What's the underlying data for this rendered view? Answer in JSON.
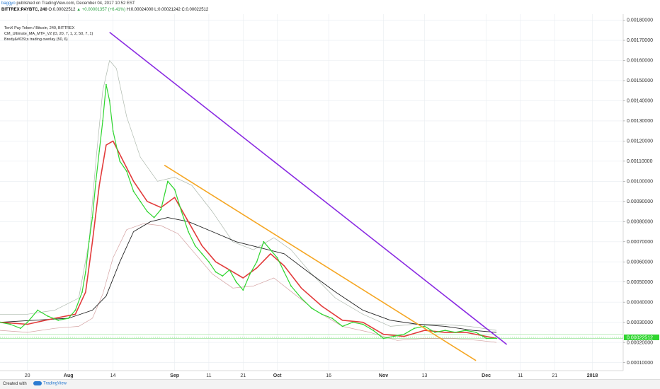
{
  "header": {
    "author": "baggyo",
    "published_text": "published on TradingView.com, December 04, 2017 10:52 EST",
    "symbol": "BITTREX:PAYBTC, 240",
    "open": "0.00022512",
    "change": "+0.00001357 (+6.41%)",
    "high_label": "H:",
    "high": "0.00024000",
    "low_label": "L:",
    "low": "0.00021242",
    "close_label": "C:",
    "close": "0.00022512"
  },
  "legend": {
    "line1": "TenX Pay Token / Bitcoin, 240, BITTREX",
    "line2": "CM_Ultimate_MA_MTF_V2 (D, 20, 7, 1, 2, 50, 7, 1)",
    "line3": "Bredy&#039;s trading overlay (50, 6)"
  },
  "footer": {
    "created_with": "Created with",
    "brand": "TradingView"
  },
  "chart_data": {
    "type": "line",
    "title": "TenX Pay Token / Bitcoin, 240, BITTREX",
    "y_ticks": [
      "0.00180000",
      "0.00170000",
      "0.00160000",
      "0.00150000",
      "0.00140000",
      "0.00130000",
      "0.00120000",
      "0.00110000",
      "0.00100000",
      "0.00090000",
      "0.00080000",
      "0.00070000",
      "0.00060000",
      "0.00050000",
      "0.00040000",
      "0.00030000",
      "0.00020000",
      "0.00010000"
    ],
    "x_ticks": [
      "20",
      "Aug",
      "14",
      "Sep",
      "11",
      "21",
      "Oct",
      "16",
      "Nov",
      "13",
      "Dec",
      "11",
      "21",
      "2018"
    ],
    "x_tick_dates": [
      "2017-07-20",
      "2017-08-01",
      "2017-08-14",
      "2017-09-01",
      "2017-09-11",
      "2017-09-21",
      "2017-10-01",
      "2017-10-16",
      "2017-11-01",
      "2017-11-13",
      "2017-12-01",
      "2017-12-11",
      "2017-12-21",
      "2018-01-01"
    ],
    "x_range": [
      "2017-07-12",
      "2018-01-10"
    ],
    "y_range": [
      6e-05,
      0.00183
    ],
    "grid": true,
    "series": [
      {
        "kind": "price",
        "color": "#2fd52f",
        "points": [
          [
            "2017-07-12",
            0.0003
          ],
          [
            "2017-07-15",
            0.00029
          ],
          [
            "2017-07-18",
            0.00027
          ],
          [
            "2017-07-20",
            0.0003
          ],
          [
            "2017-07-23",
            0.00036
          ],
          [
            "2017-07-26",
            0.00033
          ],
          [
            "2017-07-29",
            0.00031
          ],
          [
            "2017-08-01",
            0.00032
          ],
          [
            "2017-08-03",
            0.00036
          ],
          [
            "2017-08-05",
            0.00045
          ],
          [
            "2017-08-06",
            0.00055
          ],
          [
            "2017-08-07",
            0.0007
          ],
          [
            "2017-08-08",
            0.00082
          ],
          [
            "2017-08-09",
            0.001
          ],
          [
            "2017-08-10",
            0.00115
          ],
          [
            "2017-08-11",
            0.0013
          ],
          [
            "2017-08-12",
            0.00148
          ],
          [
            "2017-08-13",
            0.0014
          ],
          [
            "2017-08-14",
            0.00125
          ],
          [
            "2017-08-16",
            0.0011
          ],
          [
            "2017-08-18",
            0.00105
          ],
          [
            "2017-08-20",
            0.00095
          ],
          [
            "2017-08-22",
            0.0009
          ],
          [
            "2017-08-24",
            0.00085
          ],
          [
            "2017-08-26",
            0.00082
          ],
          [
            "2017-08-28",
            0.00086
          ],
          [
            "2017-08-30",
            0.001
          ],
          [
            "2017-09-01",
            0.00096
          ],
          [
            "2017-09-03",
            0.00085
          ],
          [
            "2017-09-05",
            0.00075
          ],
          [
            "2017-09-07",
            0.00068
          ],
          [
            "2017-09-09",
            0.00064
          ],
          [
            "2017-09-11",
            0.0006
          ],
          [
            "2017-09-13",
            0.00055
          ],
          [
            "2017-09-15",
            0.00053
          ],
          [
            "2017-09-17",
            0.00056
          ],
          [
            "2017-09-19",
            0.0005
          ],
          [
            "2017-09-21",
            0.00046
          ],
          [
            "2017-09-23",
            0.00054
          ],
          [
            "2017-09-25",
            0.0006
          ],
          [
            "2017-09-27",
            0.0007
          ],
          [
            "2017-09-29",
            0.00066
          ],
          [
            "2017-10-01",
            0.00062
          ],
          [
            "2017-10-03",
            0.00055
          ],
          [
            "2017-10-05",
            0.00048
          ],
          [
            "2017-10-08",
            0.00042
          ],
          [
            "2017-10-11",
            0.00037
          ],
          [
            "2017-10-14",
            0.00034
          ],
          [
            "2017-10-17",
            0.00032
          ],
          [
            "2017-10-20",
            0.00028
          ],
          [
            "2017-10-23",
            0.0003
          ],
          [
            "2017-10-26",
            0.00029
          ],
          [
            "2017-10-29",
            0.00026
          ],
          [
            "2017-11-01",
            0.00022
          ],
          [
            "2017-11-04",
            0.00023
          ],
          [
            "2017-11-07",
            0.00024
          ],
          [
            "2017-11-10",
            0.00027
          ],
          [
            "2017-11-13",
            0.00028
          ],
          [
            "2017-11-16",
            0.00025
          ],
          [
            "2017-11-19",
            0.00026
          ],
          [
            "2017-11-22",
            0.00025
          ],
          [
            "2017-11-25",
            0.00026
          ],
          [
            "2017-11-28",
            0.00025
          ],
          [
            "2017-12-01",
            0.00022
          ],
          [
            "2017-12-04",
            0.00022
          ]
        ]
      },
      {
        "kind": "ma_fast",
        "color": "#e23b3b",
        "points": [
          [
            "2017-07-12",
            0.0003
          ],
          [
            "2017-07-20",
            0.00029
          ],
          [
            "2017-07-28",
            0.00032
          ],
          [
            "2017-08-03",
            0.00034
          ],
          [
            "2017-08-06",
            0.00045
          ],
          [
            "2017-08-08",
            0.0007
          ],
          [
            "2017-08-10",
            0.00098
          ],
          [
            "2017-08-12",
            0.00118
          ],
          [
            "2017-08-14",
            0.0012
          ],
          [
            "2017-08-17",
            0.0011
          ],
          [
            "2017-08-20",
            0.001
          ],
          [
            "2017-08-24",
            0.0009
          ],
          [
            "2017-08-28",
            0.00087
          ],
          [
            "2017-09-01",
            0.00092
          ],
          [
            "2017-09-05",
            0.0008
          ],
          [
            "2017-09-09",
            0.00068
          ],
          [
            "2017-09-13",
            0.0006
          ],
          [
            "2017-09-17",
            0.00056
          ],
          [
            "2017-09-21",
            0.00052
          ],
          [
            "2017-09-25",
            0.00057
          ],
          [
            "2017-09-29",
            0.00064
          ],
          [
            "2017-10-03",
            0.00058
          ],
          [
            "2017-10-08",
            0.00047
          ],
          [
            "2017-10-14",
            0.00038
          ],
          [
            "2017-10-20",
            0.00031
          ],
          [
            "2017-10-26",
            0.0003
          ],
          [
            "2017-11-01",
            0.00024
          ],
          [
            "2017-11-07",
            0.00023
          ],
          [
            "2017-11-13",
            0.00026
          ],
          [
            "2017-11-19",
            0.00025
          ],
          [
            "2017-11-25",
            0.00025
          ],
          [
            "2017-12-01",
            0.00023
          ],
          [
            "2017-12-04",
            0.00022
          ]
        ]
      },
      {
        "kind": "band_upper",
        "color": "#9aa89a",
        "points": [
          [
            "2017-07-12",
            0.00034
          ],
          [
            "2017-07-20",
            0.00034
          ],
          [
            "2017-07-28",
            0.00036
          ],
          [
            "2017-08-04",
            0.00042
          ],
          [
            "2017-08-07",
            0.0007
          ],
          [
            "2017-08-09",
            0.0011
          ],
          [
            "2017-08-11",
            0.00145
          ],
          [
            "2017-08-13",
            0.0016
          ],
          [
            "2017-08-15",
            0.00156
          ],
          [
            "2017-08-18",
            0.00132
          ],
          [
            "2017-08-22",
            0.00112
          ],
          [
            "2017-08-27",
            0.001
          ],
          [
            "2017-09-01",
            0.00102
          ],
          [
            "2017-09-06",
            0.00098
          ],
          [
            "2017-09-12",
            0.00085
          ],
          [
            "2017-09-18",
            0.0007
          ],
          [
            "2017-09-24",
            0.00066
          ],
          [
            "2017-09-30",
            0.00072
          ],
          [
            "2017-10-05",
            0.00066
          ],
          [
            "2017-10-11",
            0.00054
          ],
          [
            "2017-10-18",
            0.00042
          ],
          [
            "2017-10-26",
            0.00034
          ],
          [
            "2017-11-03",
            0.00028
          ],
          [
            "2017-11-10",
            0.00029
          ],
          [
            "2017-11-18",
            0.00029
          ],
          [
            "2017-11-26",
            0.00028
          ],
          [
            "2017-12-04",
            0.00026
          ]
        ]
      },
      {
        "kind": "band_lower",
        "color": "#c98b8b",
        "points": [
          [
            "2017-07-12",
            0.00026
          ],
          [
            "2017-07-20",
            0.00025
          ],
          [
            "2017-07-28",
            0.00027
          ],
          [
            "2017-08-04",
            0.00028
          ],
          [
            "2017-08-08",
            0.00032
          ],
          [
            "2017-08-11",
            0.00044
          ],
          [
            "2017-08-14",
            0.00062
          ],
          [
            "2017-08-18",
            0.00076
          ],
          [
            "2017-08-23",
            0.00079
          ],
          [
            "2017-08-28",
            0.00078
          ],
          [
            "2017-09-02",
            0.00074
          ],
          [
            "2017-09-07",
            0.00064
          ],
          [
            "2017-09-12",
            0.00054
          ],
          [
            "2017-09-18",
            0.00047
          ],
          [
            "2017-09-24",
            0.00048
          ],
          [
            "2017-09-30",
            0.00052
          ],
          [
            "2017-10-06",
            0.00044
          ],
          [
            "2017-10-12",
            0.00036
          ],
          [
            "2017-10-20",
            0.00028
          ],
          [
            "2017-10-28",
            0.00025
          ],
          [
            "2017-11-05",
            0.00021
          ],
          [
            "2017-11-13",
            0.00022
          ],
          [
            "2017-11-21",
            0.00022
          ],
          [
            "2017-11-29",
            0.00021
          ],
          [
            "2017-12-04",
            0.0002
          ]
        ]
      },
      {
        "kind": "overlay_black",
        "color": "#222222",
        "points": [
          [
            "2017-07-12",
            0.0003
          ],
          [
            "2017-07-22",
            0.00031
          ],
          [
            "2017-08-01",
            0.00032
          ],
          [
            "2017-08-08",
            0.00036
          ],
          [
            "2017-08-12",
            0.00043
          ],
          [
            "2017-08-16",
            0.0006
          ],
          [
            "2017-08-20",
            0.00075
          ],
          [
            "2017-08-25",
            0.0008
          ],
          [
            "2017-08-30",
            0.00082
          ],
          [
            "2017-09-05",
            0.0008
          ],
          [
            "2017-09-12",
            0.00075
          ],
          [
            "2017-09-19",
            0.0007
          ],
          [
            "2017-09-26",
            0.00067
          ],
          [
            "2017-10-03",
            0.00064
          ],
          [
            "2017-10-10",
            0.00055
          ],
          [
            "2017-10-18",
            0.00045
          ],
          [
            "2017-10-26",
            0.00036
          ],
          [
            "2017-11-03",
            0.00031
          ],
          [
            "2017-11-11",
            0.00029
          ],
          [
            "2017-11-19",
            0.00028
          ],
          [
            "2017-11-27",
            0.00026
          ],
          [
            "2017-12-04",
            0.00025
          ]
        ]
      },
      {
        "kind": "trendline",
        "color": "#8a2be2",
        "points": [
          [
            "2017-08-13",
            0.00174
          ],
          [
            "2017-12-07",
            0.00019
          ]
        ]
      },
      {
        "kind": "trendline",
        "color": "#f5a623",
        "points": [
          [
            "2017-08-29",
            0.00108
          ],
          [
            "2017-11-28",
            0.00011
          ]
        ]
      }
    ],
    "current_price_line": 0.00022512,
    "horizontal_lines": [
      0.00024,
      0.00022
    ]
  }
}
